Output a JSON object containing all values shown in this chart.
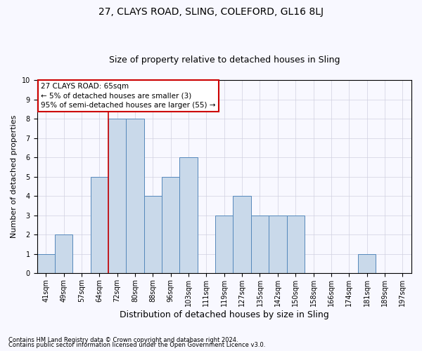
{
  "title": "27, CLAYS ROAD, SLING, COLEFORD, GL16 8LJ",
  "subtitle": "Size of property relative to detached houses in Sling",
  "xlabel": "Distribution of detached houses by size in Sling",
  "ylabel": "Number of detached properties",
  "categories": [
    "41sqm",
    "49sqm",
    "57sqm",
    "64sqm",
    "72sqm",
    "80sqm",
    "88sqm",
    "96sqm",
    "103sqm",
    "111sqm",
    "119sqm",
    "127sqm",
    "135sqm",
    "142sqm",
    "150sqm",
    "158sqm",
    "166sqm",
    "174sqm",
    "181sqm",
    "189sqm",
    "197sqm"
  ],
  "values": [
    1,
    2,
    0,
    5,
    8,
    8,
    4,
    5,
    6,
    0,
    3,
    4,
    3,
    3,
    3,
    0,
    0,
    0,
    1,
    0,
    0
  ],
  "bar_color": "#c9d9ea",
  "bar_edge_color": "#5588bb",
  "red_line_x": 3.5,
  "annotation_line1": "27 CLAYS ROAD: 65sqm",
  "annotation_line2": "← 5% of detached houses are smaller (3)",
  "annotation_line3": "95% of semi-detached houses are larger (55) →",
  "annotation_box_color": "#ffffff",
  "annotation_box_edge_color": "#cc0000",
  "ylim": [
    0,
    10
  ],
  "yticks": [
    0,
    1,
    2,
    3,
    4,
    5,
    6,
    7,
    8,
    9,
    10
  ],
  "footnote1": "Contains HM Land Registry data © Crown copyright and database right 2024.",
  "footnote2": "Contains public sector information licensed under the Open Government Licence v3.0.",
  "background_color": "#f8f8ff",
  "grid_color": "#d0d0e0",
  "title_fontsize": 10,
  "subtitle_fontsize": 9,
  "xlabel_fontsize": 9,
  "ylabel_fontsize": 8,
  "tick_fontsize": 7,
  "annotation_fontsize": 7.5,
  "footnote_fontsize": 6
}
